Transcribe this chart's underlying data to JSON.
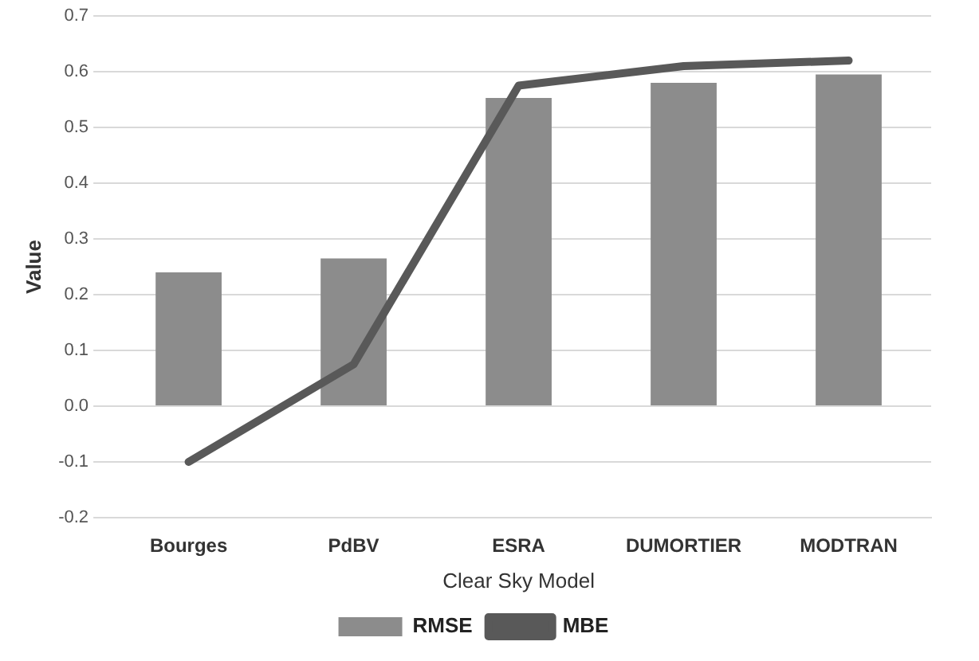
{
  "chart_data": {
    "type": "bar",
    "xlabel": "Clear Sky Model",
    "ylabel": "Value",
    "categories": [
      "Bourges",
      "PdBV",
      "ESRA",
      "DUMORTIER",
      "MODTRAN"
    ],
    "series": [
      {
        "name": "RMSE",
        "color": "#8c8c8c",
        "values": [
          0.24,
          0.265,
          0.553,
          0.58,
          0.595
        ]
      },
      {
        "name": "MBE",
        "type": "line",
        "color": "#595959",
        "values": [
          -0.1,
          0.075,
          0.575,
          0.61,
          0.62
        ]
      }
    ],
    "ylim": [
      -0.2,
      0.7
    ],
    "yticks": [
      {
        "value": -0.2,
        "label": "-0.2"
      },
      {
        "value": -0.1,
        "label": "-0.1"
      },
      {
        "value": 0,
        "label": "0.0"
      },
      {
        "value": 0.1,
        "label": "0.1"
      },
      {
        "value": 0.2,
        "label": "0.2"
      },
      {
        "value": 0.3,
        "label": "0.3"
      },
      {
        "value": 0.4,
        "label": "0.4"
      },
      {
        "value": 0.5,
        "label": "0.5"
      },
      {
        "value": 0.6,
        "label": "0.6"
      },
      {
        "value": 0.7,
        "label": "0.7"
      }
    ],
    "grid": "y",
    "legend": "bottom",
    "marker": "none"
  }
}
